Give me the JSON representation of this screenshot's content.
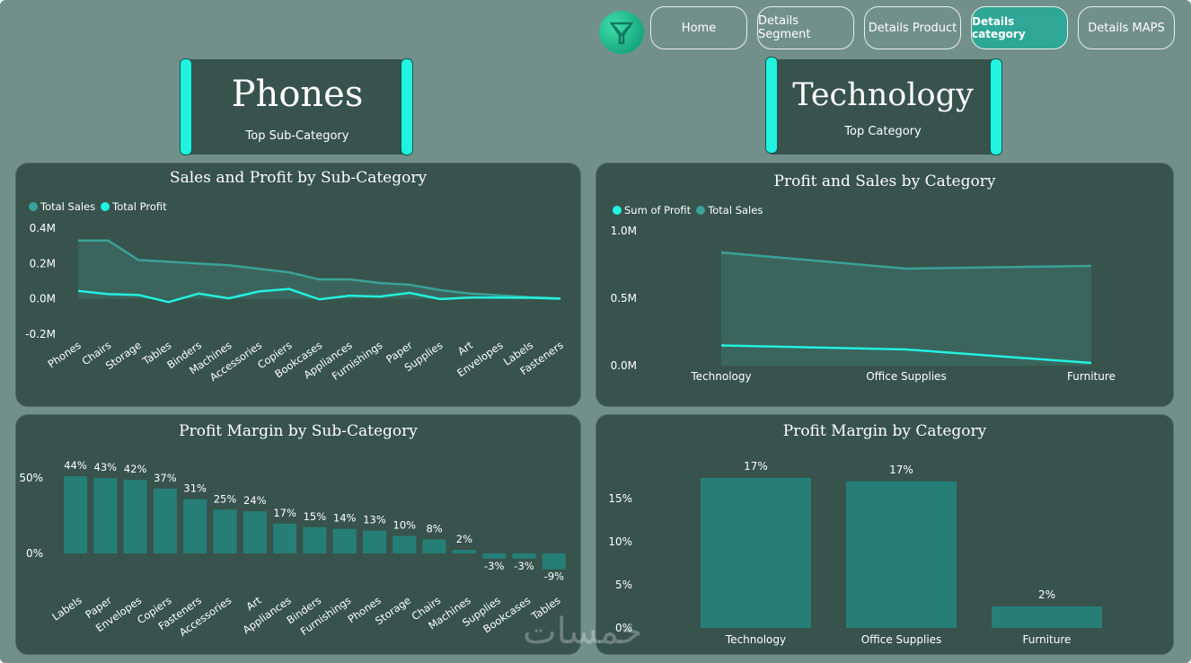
{
  "nav": {
    "buttons": [
      {
        "label": "Home",
        "active": false
      },
      {
        "label": "Details Segment",
        "active": false
      },
      {
        "label": "Details Product",
        "active": false
      },
      {
        "label": "Details category",
        "active": true
      },
      {
        "label": "Details MAPS",
        "active": false
      }
    ]
  },
  "kpis": {
    "sub_category": {
      "value": "Phones",
      "label": "Top Sub-Category"
    },
    "category": {
      "value": "Technology",
      "label": "Top Category"
    }
  },
  "colors": {
    "background": "#72908a",
    "panel": "#37534c",
    "accent_cyan": "#22f2e0",
    "sales_teal": "#3aa298",
    "bar_teal": "#257f77"
  },
  "watermark": "خمسات",
  "chart_data": [
    {
      "id": "sales_profit_subcat",
      "type": "area",
      "title": "Sales and Profit by Sub-Category",
      "categories": [
        "Phones",
        "Chairs",
        "Storage",
        "Tables",
        "Binders",
        "Machines",
        "Accessories",
        "Copiers",
        "Bookcases",
        "Appliances",
        "Furnishings",
        "Paper",
        "Supplies",
        "Art",
        "Envelopes",
        "Labels",
        "Fasteners"
      ],
      "series": [
        {
          "name": "Total Sales",
          "color": "#3aa298",
          "values": [
            0.33,
            0.33,
            0.22,
            0.21,
            0.2,
            0.19,
            0.17,
            0.15,
            0.11,
            0.11,
            0.09,
            0.08,
            0.05,
            0.03,
            0.02,
            0.01,
            0.003
          ]
        },
        {
          "name": "Total Profit",
          "color": "#22f2e0",
          "values": [
            0.045,
            0.027,
            0.022,
            -0.018,
            0.03,
            0.003,
            0.042,
            0.056,
            -0.003,
            0.018,
            0.013,
            0.034,
            -0.001,
            0.007,
            0.007,
            0.006,
            0.001
          ]
        }
      ],
      "ylim": [
        -0.2,
        0.4
      ],
      "yticks": [
        "0.4M",
        "0.2M",
        "0.0M",
        "-0.2M"
      ],
      "ytick_values": [
        0.4,
        0.2,
        0.0,
        -0.2
      ],
      "legend": "top-left"
    },
    {
      "id": "profit_sales_cat",
      "type": "area",
      "title": "Profit and Sales by Category",
      "categories": [
        "Technology",
        "Office Supplies",
        "Furniture"
      ],
      "series": [
        {
          "name": "Sum of Profit",
          "color": "#22f2e0",
          "values": [
            0.15,
            0.12,
            0.02
          ]
        },
        {
          "name": "Total Sales",
          "color": "#3aa298",
          "values": [
            0.84,
            0.72,
            0.74
          ]
        }
      ],
      "ylim": [
        0,
        1.0
      ],
      "yticks": [
        "1.0M",
        "0.5M",
        "0.0M"
      ],
      "ytick_values": [
        1.0,
        0.5,
        0.0
      ],
      "legend": "top-left"
    },
    {
      "id": "profit_margin_subcat",
      "type": "bar",
      "title": "Profit Margin by Sub-Category",
      "categories": [
        "Labels",
        "Paper",
        "Envelopes",
        "Copiers",
        "Fasteners",
        "Accessories",
        "Art",
        "Appliances",
        "Binders",
        "Furnishings",
        "Phones",
        "Storage",
        "Chairs",
        "Machines",
        "Supplies",
        "Bookcases",
        "Tables"
      ],
      "values": [
        44,
        43,
        42,
        37,
        31,
        25,
        24,
        17,
        15,
        14,
        13,
        10,
        8,
        2,
        -3,
        -3,
        -9
      ],
      "value_labels": [
        "44%",
        "43%",
        "42%",
        "37%",
        "31%",
        "25%",
        "24%",
        "17%",
        "15%",
        "14%",
        "13%",
        "10%",
        "8%",
        "2%",
        "-3%",
        "-3%",
        "-9%"
      ],
      "yticks": [
        "50%",
        "0%"
      ],
      "ytick_values": [
        50,
        0
      ],
      "color": "#257f77"
    },
    {
      "id": "profit_margin_cat",
      "type": "bar",
      "title": "Profit Margin by Category",
      "categories": [
        "Technology",
        "Office Supplies",
        "Furniture"
      ],
      "values": [
        17.4,
        17.0,
        2.5
      ],
      "value_labels": [
        "17%",
        "17%",
        "2%"
      ],
      "yticks": [
        "15%",
        "10%",
        "5%",
        "0%"
      ],
      "ytick_values": [
        15,
        10,
        5,
        0
      ],
      "color": "#257f77"
    }
  ]
}
